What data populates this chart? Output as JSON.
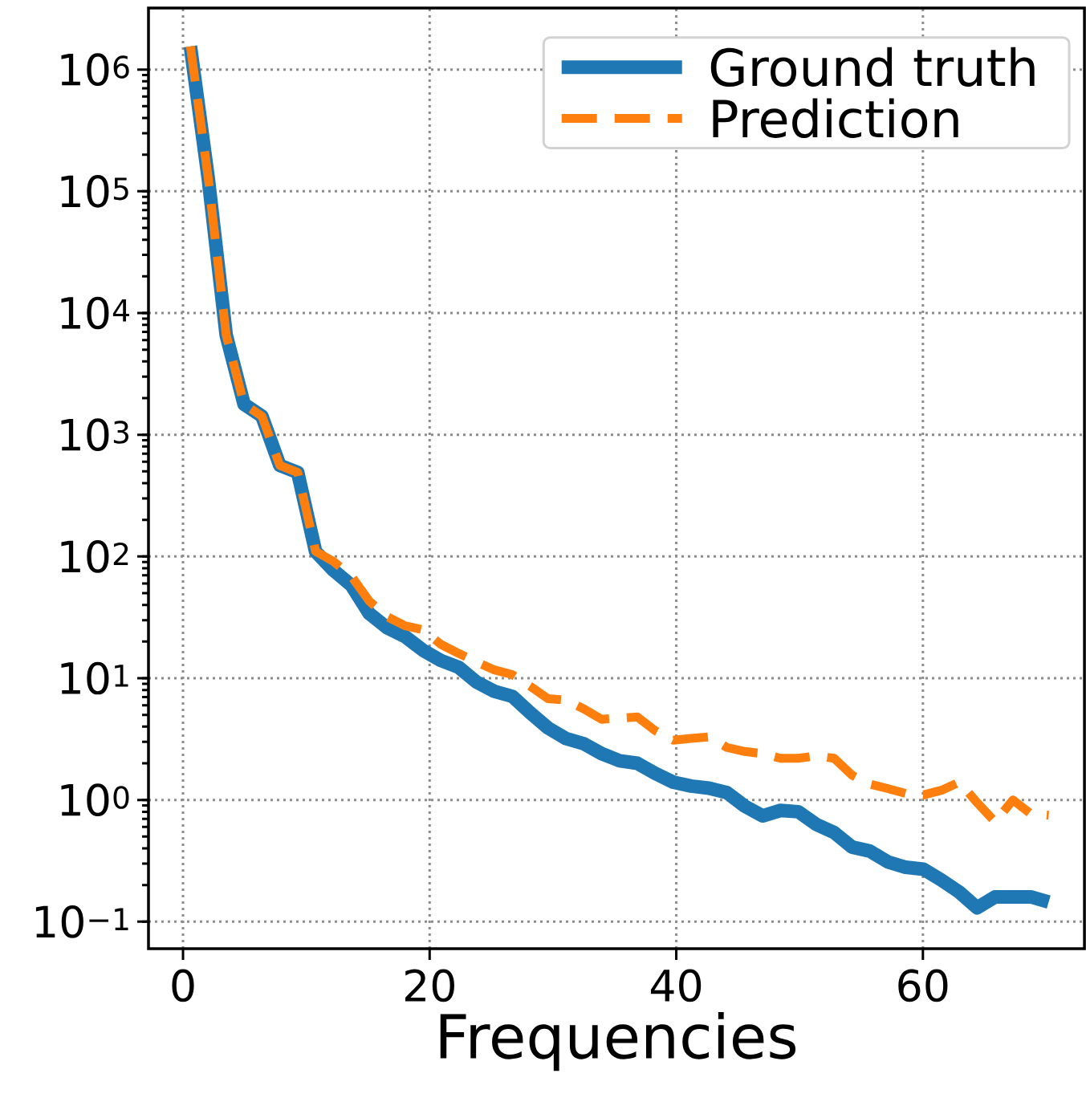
{
  "chart_data": {
    "type": "line",
    "xlabel": "Frequencies",
    "log": "y",
    "grid": true,
    "legend": "top right",
    "xlim": [
      -2.8,
      73.1
    ],
    "ylim": [
      0.06,
      3200000
    ],
    "xticks": [
      0,
      20,
      40,
      60
    ],
    "yticks": [
      {
        "value": 0.1,
        "label": "10$^{−1}$"
      },
      {
        "value": 1,
        "label": "10$^{0}$"
      },
      {
        "value": 10,
        "label": "10$^{1}$"
      },
      {
        "value": 100,
        "label": "10$^{2}$"
      },
      {
        "value": 1000,
        "label": "10$^{3}$"
      },
      {
        "value": 10000,
        "label": "10$^{4}$"
      },
      {
        "value": 100000,
        "label": "10$^{5}$"
      },
      {
        "value": 1000000,
        "label": "10$^{6}$"
      }
    ],
    "x": [
      0.6,
      2.05,
      3.5,
      4.95,
      6.4,
      7.85,
      9.3,
      10.75,
      12.2,
      13.65,
      15.1,
      16.55,
      18.0,
      19.45,
      20.9,
      22.35,
      23.8,
      25.25,
      26.7,
      28.15,
      29.6,
      31.05,
      32.5,
      33.95,
      35.4,
      36.85,
      38.3,
      39.75,
      41.2,
      42.65,
      44.1,
      45.55,
      47.0,
      48.45,
      49.9,
      51.35,
      52.8,
      54.25,
      55.7,
      57.15,
      58.6,
      60.05,
      61.5,
      62.95,
      64.4,
      65.85,
      67.3,
      68.75,
      70.2
    ],
    "series": [
      {
        "name": "Ground truth",
        "color": "#1f77b4",
        "line_style": "solid",
        "values": [
          1550000,
          127000,
          6600,
          1780,
          1420,
          560,
          490,
          110,
          77,
          58,
          34,
          26,
          22,
          17,
          14,
          12.3,
          9.3,
          7.8,
          7.1,
          5.2,
          3.9,
          3.2,
          2.9,
          2.4,
          2.1,
          2.0,
          1.65,
          1.4,
          1.3,
          1.25,
          1.15,
          0.89,
          0.74,
          0.82,
          0.8,
          0.63,
          0.54,
          0.41,
          0.38,
          0.31,
          0.28,
          0.27,
          0.22,
          0.175,
          0.13,
          0.16,
          0.16,
          0.16,
          0.145
        ]
      },
      {
        "name": "Prediction",
        "color": "#ff7f0e",
        "line_style": "dashed",
        "values": [
          1550000,
          127000,
          6600,
          1780,
          1420,
          560,
          490,
          110,
          91,
          69,
          43,
          32,
          27,
          25,
          19,
          16,
          13.6,
          11.7,
          10.7,
          8.6,
          6.8,
          6.6,
          5.6,
          4.6,
          4.7,
          4.8,
          3.7,
          3.1,
          3.2,
          3.3,
          2.7,
          2.5,
          2.4,
          2.2,
          2.2,
          2.3,
          2.2,
          1.6,
          1.35,
          1.24,
          1.13,
          1.1,
          1.2,
          1.4,
          0.95,
          0.66,
          1.0,
          0.77,
          0.75
        ]
      }
    ]
  }
}
